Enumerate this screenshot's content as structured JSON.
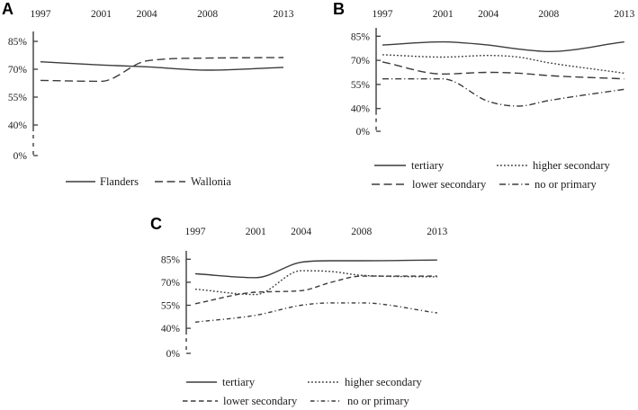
{
  "figure": {
    "description": "Three panel line-chart figure (A, B, C) showing percentage rates over years 1997-2013",
    "background_color": "#ffffff",
    "line_color": "#3c3c3c",
    "text_color": "#1c1c1c"
  },
  "chart_data": [
    {
      "panel_label": "A",
      "type": "line",
      "x_tick_labels": [
        "1997",
        "2001",
        "2004",
        "2008",
        "2013"
      ],
      "x_ticks": [
        1997,
        2001,
        2004,
        2008,
        2013
      ],
      "y_tick_labels": [
        "85%",
        "70%",
        "55%",
        "40%",
        "0%"
      ],
      "y_ticks": [
        85,
        70,
        55,
        40,
        0
      ],
      "y_axis_break": true,
      "x_axis_position": "top",
      "legend_position": "bottom",
      "x": [
        1997,
        2001,
        2004,
        2008,
        2013
      ],
      "series": [
        {
          "name": "Flanders",
          "line_style": "solid",
          "values": [
            74,
            72.3,
            71.3,
            69.5,
            71
          ]
        },
        {
          "name": "Wallonia",
          "line_style": "long-dash",
          "values": [
            64,
            63.5,
            74.5,
            76,
            76.3
          ]
        }
      ]
    },
    {
      "panel_label": "B",
      "type": "line",
      "x_tick_labels": [
        "1997",
        "2001",
        "2004",
        "2008",
        "2013"
      ],
      "x_ticks": [
        1997,
        2001,
        2004,
        2008,
        2013
      ],
      "y_tick_labels": [
        "85%",
        "70%",
        "55%",
        "40%",
        "0%"
      ],
      "y_ticks": [
        85,
        70,
        55,
        40,
        0
      ],
      "y_axis_break": true,
      "x_axis_position": "top",
      "legend_position": "bottom",
      "x": [
        1997,
        2001,
        2004,
        2006,
        2008,
        2013
      ],
      "series": [
        {
          "name": "tertiary",
          "line_style": "solid",
          "values": [
            79.5,
            81.5,
            79.5,
            77,
            75.5,
            81.5
          ]
        },
        {
          "name": "higher secondary",
          "line_style": "dotted",
          "values": [
            73.5,
            72,
            73,
            72,
            68.5,
            62
          ]
        },
        {
          "name": "lower secondary",
          "line_style": "long-dash",
          "values": [
            69,
            61.5,
            62.5,
            62,
            60.5,
            58.5
          ]
        },
        {
          "name": "no or primary",
          "line_style": "dash-dot",
          "values": [
            58.5,
            58.5,
            44.5,
            41.5,
            45,
            52
          ]
        }
      ]
    },
    {
      "panel_label": "C",
      "type": "line",
      "x_tick_labels": [
        "1997",
        "2001",
        "2004",
        "2008",
        "2013"
      ],
      "x_ticks": [
        1997,
        2001,
        2004,
        2008,
        2013
      ],
      "y_tick_labels": [
        "85%",
        "70%",
        "55%",
        "40%",
        "0%"
      ],
      "y_ticks": [
        85,
        70,
        55,
        40,
        0
      ],
      "y_axis_break": true,
      "x_axis_position": "top",
      "legend_position": "bottom",
      "x": [
        1997,
        2001,
        2004,
        2006,
        2008,
        2013
      ],
      "series": [
        {
          "name": "tertiary",
          "line_style": "solid",
          "values": [
            75.5,
            73,
            83,
            84,
            84,
            84.5
          ]
        },
        {
          "name": "higher secondary",
          "line_style": "dotted",
          "values": [
            65.5,
            62,
            77.5,
            77,
            74.5,
            73.5
          ]
        },
        {
          "name": "lower secondary",
          "line_style": "med-dash",
          "values": [
            56,
            63.5,
            64.5,
            70,
            74,
            74
          ]
        },
        {
          "name": "no or primary",
          "line_style": "dash-dot-short",
          "values": [
            44,
            48.5,
            55,
            56.5,
            56.5,
            50
          ]
        }
      ]
    }
  ]
}
